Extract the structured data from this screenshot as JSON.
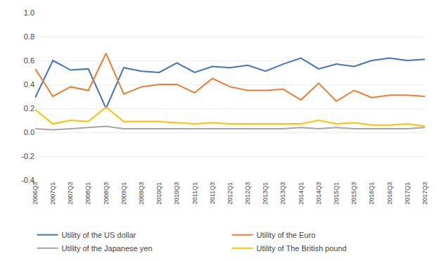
{
  "chart_data": {
    "type": "line",
    "categories": [
      "2006Q3",
      "2007Q1",
      "2007Q3",
      "2008Q1",
      "2008Q3",
      "2009Q1",
      "2009Q3",
      "2010Q1",
      "2010Q3",
      "2011Q1",
      "2011Q3",
      "2012Q1",
      "2012Q3",
      "2013Q1",
      "2013Q3",
      "2014Q1",
      "2014Q3",
      "2015Q1",
      "2015Q3",
      "2016Q1",
      "2016Q3",
      "2017Q1",
      "2017Q3"
    ],
    "series": [
      {
        "name": "Utility of the US dollar",
        "color": "#4472C4",
        "values": [
          0.29,
          0.6,
          0.52,
          0.53,
          0.2,
          0.54,
          0.51,
          0.5,
          0.58,
          0.5,
          0.55,
          0.54,
          0.56,
          0.51,
          0.57,
          0.62,
          0.53,
          0.57,
          0.55,
          0.6,
          0.62,
          0.6,
          0.61
        ]
      },
      {
        "name": "Utility of the Euro",
        "color": "#ED7D31",
        "values": [
          0.53,
          0.3,
          0.38,
          0.35,
          0.66,
          0.32,
          0.38,
          0.4,
          0.4,
          0.33,
          0.45,
          0.38,
          0.35,
          0.35,
          0.36,
          0.27,
          0.41,
          0.26,
          0.35,
          0.29,
          0.31,
          0.31,
          0.3
        ]
      },
      {
        "name": "Utility of the Japanese yen",
        "color": "#A5A5A5",
        "values": [
          0.03,
          0.02,
          0.03,
          0.04,
          0.05,
          0.03,
          0.03,
          0.03,
          0.03,
          0.03,
          0.03,
          0.03,
          0.03,
          0.03,
          0.03,
          0.04,
          0.03,
          0.04,
          0.03,
          0.03,
          0.03,
          0.03,
          0.04
        ]
      },
      {
        "name": "Utility of The British pound",
        "color": "#FFC000",
        "values": [
          0.19,
          0.07,
          0.1,
          0.09,
          0.21,
          0.09,
          0.09,
          0.09,
          0.08,
          0.07,
          0.08,
          0.07,
          0.07,
          0.07,
          0.07,
          0.07,
          0.1,
          0.07,
          0.08,
          0.06,
          0.06,
          0.07,
          0.05
        ]
      }
    ],
    "ylim": [
      -0.4,
      1.0
    ],
    "yticks": [
      -0.4,
      -0.2,
      {
        "value": 0,
        "label": "0.0"
      },
      0.2,
      0.4,
      0.6,
      0.8,
      {
        "value": 1,
        "label": "1.0"
      }
    ],
    "grid": true,
    "legend": "bottom"
  }
}
